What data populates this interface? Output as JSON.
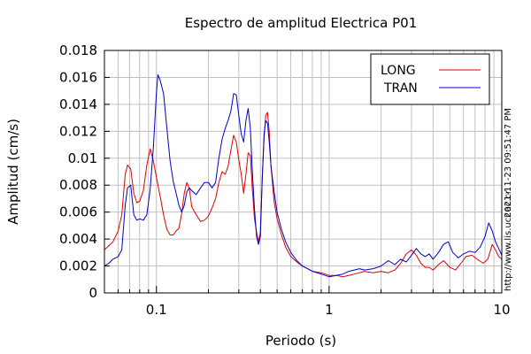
{
  "chart_data": {
    "type": "line",
    "title": "Espectro de amplitud Electrica P01",
    "xlabel": "Periodo (s)",
    "ylabel": "Amplitud (cm/s)",
    "xscale": "log",
    "xlim": [
      0.05,
      10
    ],
    "ylim": [
      0,
      0.018
    ],
    "x_ticks": [
      {
        "value": 0.1,
        "label": "0.1"
      },
      {
        "value": 1,
        "label": "1"
      },
      {
        "value": 10,
        "label": "10"
      }
    ],
    "y_ticks": [
      {
        "value": 0,
        "label": "0"
      },
      {
        "value": 0.002,
        "label": "0.002"
      },
      {
        "value": 0.004,
        "label": "0.004"
      },
      {
        "value": 0.006,
        "label": "0.006"
      },
      {
        "value": 0.008,
        "label": "0.008"
      },
      {
        "value": 0.01,
        "label": "0.01"
      },
      {
        "value": 0.012,
        "label": "0.012"
      },
      {
        "value": 0.014,
        "label": "0.014"
      },
      {
        "value": 0.016,
        "label": "0.016"
      },
      {
        "value": 0.018,
        "label": "0.018"
      }
    ],
    "grid": true,
    "legend_position": "top-right",
    "series": [
      {
        "name": "LONG",
        "color": "#dd0000",
        "points": [
          [
            0.05,
            0.0032
          ],
          [
            0.053,
            0.0035
          ],
          [
            0.056,
            0.0038
          ],
          [
            0.06,
            0.0046
          ],
          [
            0.063,
            0.0058
          ],
          [
            0.066,
            0.0088
          ],
          [
            0.068,
            0.0095
          ],
          [
            0.071,
            0.0092
          ],
          [
            0.074,
            0.0074
          ],
          [
            0.077,
            0.0067
          ],
          [
            0.08,
            0.0068
          ],
          [
            0.084,
            0.0076
          ],
          [
            0.088,
            0.0095
          ],
          [
            0.092,
            0.0107
          ],
          [
            0.096,
            0.0098
          ],
          [
            0.1,
            0.0086
          ],
          [
            0.105,
            0.0072
          ],
          [
            0.11,
            0.0058
          ],
          [
            0.115,
            0.0047
          ],
          [
            0.12,
            0.0043
          ],
          [
            0.125,
            0.0043
          ],
          [
            0.13,
            0.0046
          ],
          [
            0.135,
            0.0048
          ],
          [
            0.14,
            0.0059
          ],
          [
            0.145,
            0.0074
          ],
          [
            0.15,
            0.0082
          ],
          [
            0.155,
            0.0078
          ],
          [
            0.16,
            0.0064
          ],
          [
            0.17,
            0.0058
          ],
          [
            0.18,
            0.0053
          ],
          [
            0.19,
            0.0054
          ],
          [
            0.2,
            0.0057
          ],
          [
            0.21,
            0.0063
          ],
          [
            0.22,
            0.007
          ],
          [
            0.23,
            0.0082
          ],
          [
            0.24,
            0.009
          ],
          [
            0.25,
            0.0088
          ],
          [
            0.26,
            0.0094
          ],
          [
            0.27,
            0.0106
          ],
          [
            0.28,
            0.0117
          ],
          [
            0.29,
            0.0112
          ],
          [
            0.3,
            0.0099
          ],
          [
            0.31,
            0.0088
          ],
          [
            0.32,
            0.0074
          ],
          [
            0.33,
            0.0088
          ],
          [
            0.34,
            0.0104
          ],
          [
            0.35,
            0.0102
          ],
          [
            0.36,
            0.0075
          ],
          [
            0.37,
            0.0055
          ],
          [
            0.38,
            0.0045
          ],
          [
            0.39,
            0.0038
          ],
          [
            0.4,
            0.0045
          ],
          [
            0.41,
            0.0085
          ],
          [
            0.42,
            0.0115
          ],
          [
            0.43,
            0.0132
          ],
          [
            0.44,
            0.0134
          ],
          [
            0.45,
            0.012
          ],
          [
            0.46,
            0.0095
          ],
          [
            0.48,
            0.0068
          ],
          [
            0.5,
            0.0055
          ],
          [
            0.53,
            0.0043
          ],
          [
            0.56,
            0.0034
          ],
          [
            0.6,
            0.0027
          ],
          [
            0.65,
            0.0023
          ],
          [
            0.7,
            0.002
          ],
          [
            0.75,
            0.0018
          ],
          [
            0.8,
            0.0016
          ],
          [
            0.9,
            0.0015
          ],
          [
            1.0,
            0.0013
          ],
          [
            1.1,
            0.0013
          ],
          [
            1.2,
            0.0012
          ],
          [
            1.3,
            0.0013
          ],
          [
            1.4,
            0.0014
          ],
          [
            1.5,
            0.0015
          ],
          [
            1.6,
            0.0016
          ],
          [
            1.8,
            0.0015
          ],
          [
            2.0,
            0.0016
          ],
          [
            2.2,
            0.0015
          ],
          [
            2.4,
            0.0017
          ],
          [
            2.6,
            0.0022
          ],
          [
            2.8,
            0.0029
          ],
          [
            3.0,
            0.0032
          ],
          [
            3.2,
            0.0028
          ],
          [
            3.4,
            0.0022
          ],
          [
            3.6,
            0.0019
          ],
          [
            3.8,
            0.0019
          ],
          [
            4.0,
            0.0017
          ],
          [
            4.3,
            0.0021
          ],
          [
            4.6,
            0.0024
          ],
          [
            5.0,
            0.0019
          ],
          [
            5.4,
            0.0017
          ],
          [
            5.8,
            0.0022
          ],
          [
            6.2,
            0.0027
          ],
          [
            6.7,
            0.0028
          ],
          [
            7.2,
            0.0025
          ],
          [
            7.8,
            0.0022
          ],
          [
            8.3,
            0.0025
          ],
          [
            8.8,
            0.0036
          ],
          [
            9.2,
            0.0032
          ],
          [
            9.6,
            0.0027
          ],
          [
            10.0,
            0.0025
          ]
        ]
      },
      {
        "name": "TRAN",
        "color": "#0000cc",
        "points": [
          [
            0.05,
            0.002
          ],
          [
            0.053,
            0.0022
          ],
          [
            0.056,
            0.0025
          ],
          [
            0.06,
            0.0027
          ],
          [
            0.063,
            0.0032
          ],
          [
            0.066,
            0.0065
          ],
          [
            0.068,
            0.0078
          ],
          [
            0.071,
            0.008
          ],
          [
            0.074,
            0.0058
          ],
          [
            0.077,
            0.0054
          ],
          [
            0.08,
            0.0055
          ],
          [
            0.084,
            0.0054
          ],
          [
            0.088,
            0.0058
          ],
          [
            0.092,
            0.0077
          ],
          [
            0.096,
            0.0108
          ],
          [
            0.1,
            0.0148
          ],
          [
            0.102,
            0.0162
          ],
          [
            0.105,
            0.0158
          ],
          [
            0.11,
            0.0148
          ],
          [
            0.115,
            0.0122
          ],
          [
            0.12,
            0.0098
          ],
          [
            0.125,
            0.0083
          ],
          [
            0.13,
            0.0074
          ],
          [
            0.135,
            0.0065
          ],
          [
            0.14,
            0.006
          ],
          [
            0.145,
            0.0065
          ],
          [
            0.15,
            0.0075
          ],
          [
            0.155,
            0.0078
          ],
          [
            0.16,
            0.0076
          ],
          [
            0.17,
            0.0073
          ],
          [
            0.18,
            0.0078
          ],
          [
            0.19,
            0.0082
          ],
          [
            0.2,
            0.0082
          ],
          [
            0.21,
            0.0078
          ],
          [
            0.22,
            0.0082
          ],
          [
            0.23,
            0.01
          ],
          [
            0.24,
            0.0114
          ],
          [
            0.25,
            0.0122
          ],
          [
            0.26,
            0.0128
          ],
          [
            0.27,
            0.0135
          ],
          [
            0.28,
            0.0148
          ],
          [
            0.29,
            0.0147
          ],
          [
            0.3,
            0.0132
          ],
          [
            0.31,
            0.0118
          ],
          [
            0.32,
            0.0112
          ],
          [
            0.33,
            0.0128
          ],
          [
            0.34,
            0.0137
          ],
          [
            0.35,
            0.0122
          ],
          [
            0.36,
            0.0088
          ],
          [
            0.37,
            0.0062
          ],
          [
            0.38,
            0.0042
          ],
          [
            0.39,
            0.0036
          ],
          [
            0.4,
            0.0042
          ],
          [
            0.41,
            0.0085
          ],
          [
            0.42,
            0.0118
          ],
          [
            0.43,
            0.0128
          ],
          [
            0.44,
            0.0126
          ],
          [
            0.45,
            0.0112
          ],
          [
            0.46,
            0.0095
          ],
          [
            0.48,
            0.0075
          ],
          [
            0.5,
            0.006
          ],
          [
            0.53,
            0.0047
          ],
          [
            0.56,
            0.0038
          ],
          [
            0.6,
            0.003
          ],
          [
            0.65,
            0.0024
          ],
          [
            0.7,
            0.002
          ],
          [
            0.75,
            0.0018
          ],
          [
            0.8,
            0.0016
          ],
          [
            0.9,
            0.0014
          ],
          [
            1.0,
            0.0012
          ],
          [
            1.1,
            0.0013
          ],
          [
            1.2,
            0.0014
          ],
          [
            1.3,
            0.0016
          ],
          [
            1.4,
            0.0017
          ],
          [
            1.5,
            0.0018
          ],
          [
            1.6,
            0.0017
          ],
          [
            1.8,
            0.0018
          ],
          [
            2.0,
            0.002
          ],
          [
            2.2,
            0.0024
          ],
          [
            2.4,
            0.0021
          ],
          [
            2.6,
            0.0025
          ],
          [
            2.8,
            0.0023
          ],
          [
            3.0,
            0.0028
          ],
          [
            3.2,
            0.0033
          ],
          [
            3.4,
            0.0029
          ],
          [
            3.6,
            0.0027
          ],
          [
            3.8,
            0.0029
          ],
          [
            4.0,
            0.0025
          ],
          [
            4.3,
            0.003
          ],
          [
            4.6,
            0.0036
          ],
          [
            4.9,
            0.0038
          ],
          [
            5.2,
            0.003
          ],
          [
            5.6,
            0.0026
          ],
          [
            6.0,
            0.0029
          ],
          [
            6.5,
            0.0031
          ],
          [
            7.0,
            0.003
          ],
          [
            7.5,
            0.0034
          ],
          [
            8.0,
            0.0042
          ],
          [
            8.4,
            0.0052
          ],
          [
            8.8,
            0.0046
          ],
          [
            9.2,
            0.0038
          ],
          [
            9.6,
            0.0033
          ],
          [
            10.0,
            0.0028
          ]
        ]
      }
    ]
  },
  "side_text": {
    "timestamp": "2021-11-23 09:51:47 PM",
    "url": "http://www.lis.ucr.ac.cr"
  }
}
